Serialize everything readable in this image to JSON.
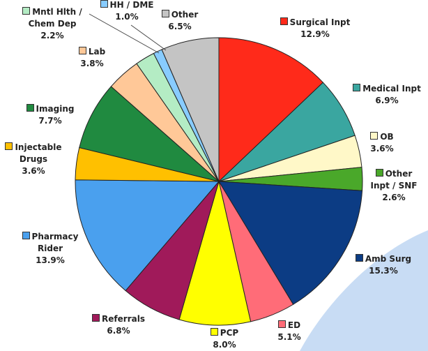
{
  "chart_data": {
    "type": "pie",
    "categories": [
      "Surgical Inpt",
      "Medical Inpt",
      "OB",
      "Other Inpt / SNF",
      "Amb Surg",
      "ED",
      "PCP",
      "Referrals",
      "Pharmacy Rider",
      "Injectable Drugs",
      "Imaging",
      "Lab",
      "Mntl Hlth / Chem Dep",
      "HH / DME",
      "Other"
    ],
    "values": [
      12.9,
      6.9,
      3.6,
      2.6,
      15.3,
      5.1,
      8.0,
      6.8,
      13.9,
      3.6,
      7.7,
      3.8,
      2.2,
      1.0,
      6.5
    ],
    "value_labels": [
      "12.9%",
      "6.9%",
      "3.6%",
      "2.6%",
      "15.3%",
      "5.1%",
      "8.0%",
      "6.8%",
      "13.9%",
      "3.6%",
      "7.7%",
      "3.8%",
      "2.2%",
      "1.0%",
      "6.5%"
    ],
    "colors": [
      "#ff2a1a",
      "#3aa6a0",
      "#fff8c8",
      "#4aa82a",
      "#0c3c84",
      "#ff6c78",
      "#ffff00",
      "#a01a5a",
      "#4aa0ee",
      "#ffc000",
      "#208a40",
      "#ffc898",
      "#b4ecc4",
      "#88ccff",
      "#c4c4c4"
    ]
  }
}
